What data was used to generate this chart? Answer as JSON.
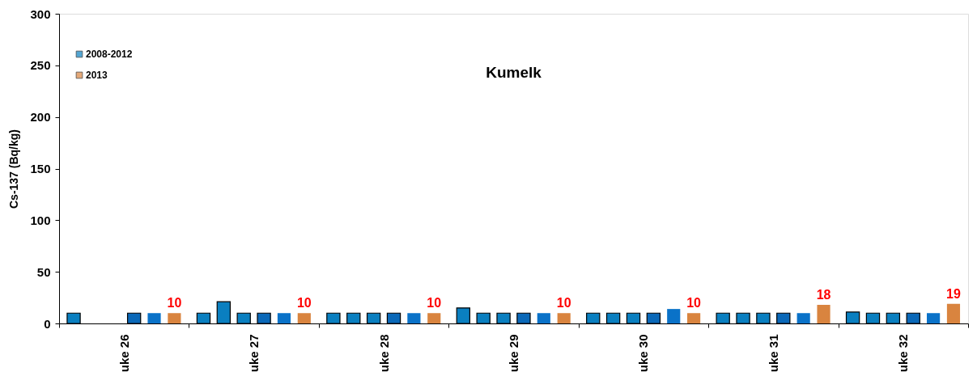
{
  "chart_data": {
    "type": "bar",
    "title": "Kumelk",
    "ylabel": "Cs-137 (Bq/kg)",
    "categories": [
      "uke 26",
      "uke 27",
      "uke 28",
      "uke 29",
      "uke 30",
      "uke 31",
      "uke 32"
    ],
    "series": [
      {
        "name": "2008-2012",
        "color": "#0a7fc0",
        "values": [
          10,
          10,
          10,
          15,
          10,
          10,
          11
        ]
      },
      {
        "color": "#0a7fc0",
        "values": [
          null,
          21,
          10,
          10,
          10,
          10,
          10
        ]
      },
      {
        "color": "#0a7fc0",
        "values": [
          null,
          10,
          10,
          10,
          10,
          10,
          10
        ]
      },
      {
        "color": "#0a68b8",
        "values": [
          10,
          10,
          10,
          10,
          10,
          10,
          10
        ]
      },
      {
        "color": "#0a72c8",
        "values": [
          10,
          10,
          10,
          10,
          14,
          10,
          10
        ]
      },
      {
        "name": "2013",
        "color": "#d9843f",
        "values": [
          10,
          10,
          10,
          10,
          10,
          18,
          19
        ],
        "value_labels": [
          "10",
          "10",
          "10",
          "10",
          "10",
          "18",
          "19"
        ]
      }
    ],
    "ylim": [
      0,
      300
    ],
    "yticks": [
      0,
      50,
      100,
      150,
      200,
      250,
      300
    ],
    "grid": false,
    "legend": "top left"
  }
}
